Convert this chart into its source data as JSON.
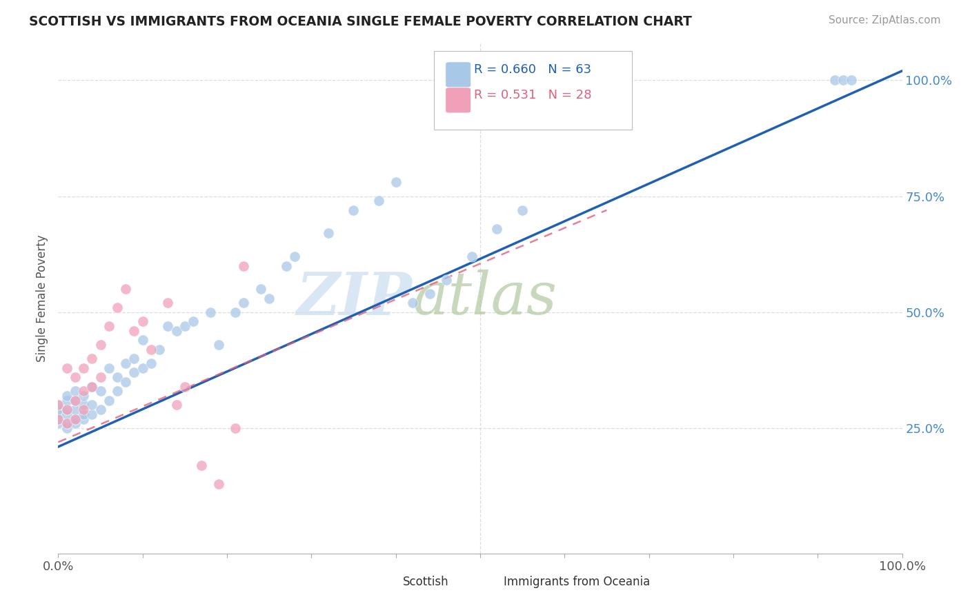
{
  "title": "SCOTTISH VS IMMIGRANTS FROM OCEANIA SINGLE FEMALE POVERTY CORRELATION CHART",
  "source": "Source: ZipAtlas.com",
  "ylabel": "Single Female Poverty",
  "xlim": [
    0.0,
    1.0
  ],
  "ylim": [
    -0.02,
    1.08
  ],
  "scottish_R": 0.66,
  "scottish_N": 63,
  "oceania_R": 0.531,
  "oceania_N": 28,
  "scottish_color": "#A8C8E8",
  "oceania_color": "#F0A0B8",
  "line_scottish_color": "#2060B0",
  "line_oceania_color": "#E06080",
  "watermark_zip": "ZIP",
  "watermark_atlas": "atlas",
  "background_color": "#FFFFFF",
  "grid_color": "#DDDDDD",
  "ytick_color": "#4488CC",
  "xtick_color": "#555555",
  "scottish_x": [
    0.0,
    0.0,
    0.0,
    0.0,
    0.0,
    0.01,
    0.01,
    0.01,
    0.01,
    0.01,
    0.01,
    0.02,
    0.02,
    0.02,
    0.02,
    0.02,
    0.03,
    0.03,
    0.03,
    0.03,
    0.04,
    0.04,
    0.04,
    0.05,
    0.05,
    0.06,
    0.06,
    0.07,
    0.07,
    0.08,
    0.08,
    0.09,
    0.09,
    0.1,
    0.1,
    0.11,
    0.12,
    0.13,
    0.14,
    0.15,
    0.16,
    0.18,
    0.19,
    0.21,
    0.22,
    0.24,
    0.25,
    0.27,
    0.28,
    0.32,
    0.35,
    0.38,
    0.4,
    0.42,
    0.44,
    0.46,
    0.49,
    0.52,
    0.55,
    0.92,
    0.93,
    0.94
  ],
  "scottish_y": [
    0.26,
    0.27,
    0.28,
    0.29,
    0.3,
    0.25,
    0.26,
    0.28,
    0.29,
    0.31,
    0.32,
    0.26,
    0.27,
    0.29,
    0.31,
    0.33,
    0.27,
    0.28,
    0.3,
    0.32,
    0.28,
    0.3,
    0.34,
    0.29,
    0.33,
    0.31,
    0.38,
    0.33,
    0.36,
    0.35,
    0.39,
    0.37,
    0.4,
    0.38,
    0.44,
    0.39,
    0.42,
    0.47,
    0.46,
    0.47,
    0.48,
    0.5,
    0.43,
    0.5,
    0.52,
    0.55,
    0.53,
    0.6,
    0.62,
    0.67,
    0.72,
    0.74,
    0.78,
    0.52,
    0.54,
    0.57,
    0.62,
    0.68,
    0.72,
    1.0,
    1.0,
    1.0
  ],
  "oceania_x": [
    0.0,
    0.0,
    0.01,
    0.01,
    0.01,
    0.02,
    0.02,
    0.02,
    0.03,
    0.03,
    0.03,
    0.04,
    0.04,
    0.05,
    0.05,
    0.06,
    0.07,
    0.08,
    0.09,
    0.1,
    0.11,
    0.13,
    0.14,
    0.15,
    0.17,
    0.19,
    0.21,
    0.22
  ],
  "oceania_y": [
    0.27,
    0.3,
    0.26,
    0.29,
    0.38,
    0.27,
    0.31,
    0.36,
    0.29,
    0.33,
    0.38,
    0.34,
    0.4,
    0.36,
    0.43,
    0.47,
    0.51,
    0.55,
    0.46,
    0.48,
    0.42,
    0.52,
    0.3,
    0.34,
    0.17,
    0.13,
    0.25,
    0.6
  ],
  "scottish_line_x0": 0.0,
  "scottish_line_y0": 0.21,
  "scottish_line_x1": 1.0,
  "scottish_line_y1": 1.02,
  "oceania_line_x0": 0.0,
  "oceania_line_y0": 0.22,
  "oceania_line_x1": 0.65,
  "oceania_line_y1": 0.72
}
